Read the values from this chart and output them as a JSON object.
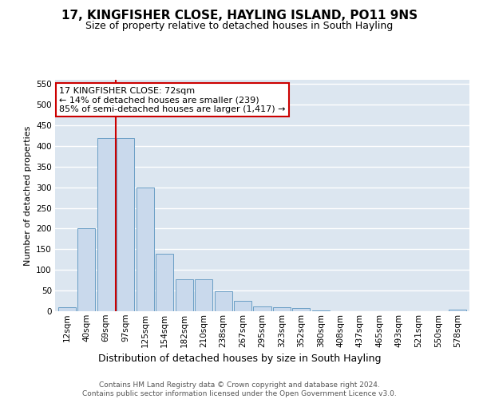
{
  "title": "17, KINGFISHER CLOSE, HAYLING ISLAND, PO11 9NS",
  "subtitle": "Size of property relative to detached houses in South Hayling",
  "xlabel": "Distribution of detached houses by size in South Hayling",
  "ylabel": "Number of detached properties",
  "categories": [
    "12sqm",
    "40sqm",
    "69sqm",
    "97sqm",
    "125sqm",
    "154sqm",
    "182sqm",
    "210sqm",
    "238sqm",
    "267sqm",
    "295sqm",
    "323sqm",
    "352sqm",
    "380sqm",
    "408sqm",
    "437sqm",
    "465sqm",
    "493sqm",
    "521sqm",
    "550sqm",
    "578sqm"
  ],
  "values": [
    10,
    200,
    420,
    420,
    300,
    140,
    78,
    78,
    48,
    25,
    12,
    10,
    8,
    2,
    0,
    0,
    0,
    0,
    0,
    0,
    4
  ],
  "bar_color": "#c9d9ec",
  "bar_edge_color": "#6a9ec5",
  "background_color": "#dce6f0",
  "grid_color": "#ffffff",
  "vline_color": "#cc0000",
  "vline_index": 2.5,
  "annotation_text": "17 KINGFISHER CLOSE: 72sqm\n← 14% of detached houses are smaller (239)\n85% of semi-detached houses are larger (1,417) →",
  "annotation_box_facecolor": "#ffffff",
  "annotation_box_edgecolor": "#cc0000",
  "ylim": [
    0,
    560
  ],
  "yticks": [
    0,
    50,
    100,
    150,
    200,
    250,
    300,
    350,
    400,
    450,
    500,
    550
  ],
  "footer_text": "Contains HM Land Registry data © Crown copyright and database right 2024.\nContains public sector information licensed under the Open Government Licence v3.0.",
  "title_fontsize": 11,
  "subtitle_fontsize": 9,
  "xlabel_fontsize": 9,
  "ylabel_fontsize": 8,
  "tick_fontsize": 7.5,
  "annotation_fontsize": 8,
  "footer_fontsize": 6.5
}
